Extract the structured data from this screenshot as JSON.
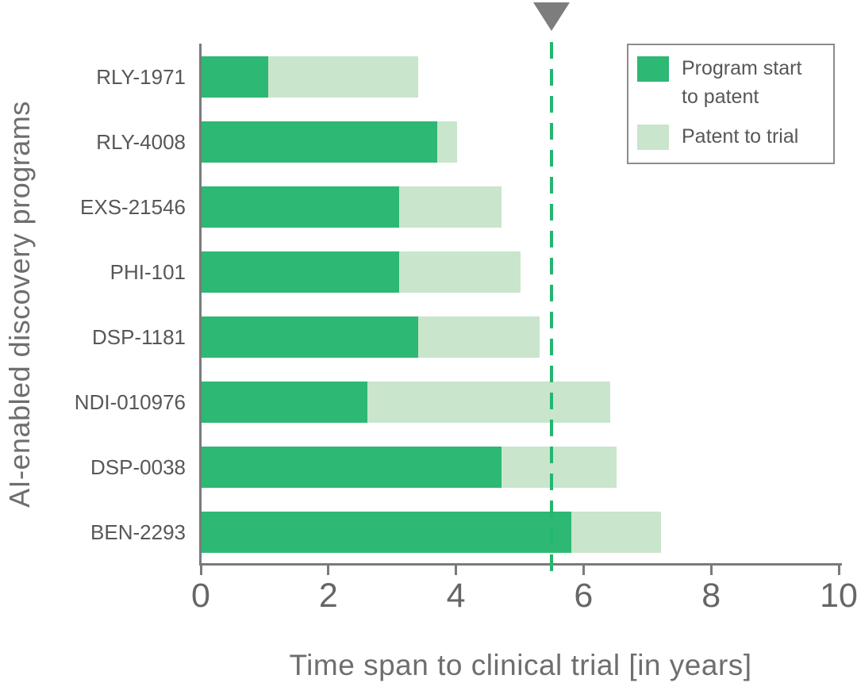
{
  "chart_data": {
    "type": "bar",
    "orientation": "horizontal",
    "stacked": true,
    "title": "",
    "xlabel": "Time span to clinical trial [in years]",
    "ylabel": "AI-enabled discovery programs",
    "categories": [
      "RLY-1971",
      "RLY-4008",
      "EXS-21546",
      "PHI-101",
      "DSP-1181",
      "NDI-010976",
      "DSP-0038",
      "BEN-2293"
    ],
    "series": [
      {
        "name": "Program start to patent",
        "color": "#2db874",
        "values": [
          1.05,
          3.7,
          3.1,
          3.1,
          3.4,
          2.6,
          4.7,
          5.8
        ]
      },
      {
        "name": "Patent to trial",
        "color": "#c9e5cb",
        "values": [
          2.35,
          0.3,
          1.6,
          1.9,
          1.9,
          3.8,
          1.8,
          1.4
        ]
      }
    ],
    "totals": [
      3.4,
      4.0,
      4.7,
      5.0,
      5.3,
      6.4,
      6.5,
      7.2
    ],
    "xlim": [
      0,
      10
    ],
    "xticks": [
      0,
      2,
      4,
      6,
      8,
      10
    ],
    "grid": false,
    "reference_line": {
      "value": 5.5,
      "style": "dashed",
      "color": "#24b671",
      "marker": "down-triangle",
      "marker_color": "#7d7d7d"
    },
    "legend": {
      "position": "top-right",
      "border": true
    }
  },
  "colors": {
    "axis": "#7a7a7a",
    "tick_text": "#666666",
    "category_text": "#575757",
    "title_text": "#6e6e6e",
    "legend_border": "#8c8c8c",
    "background": "#ffffff"
  }
}
